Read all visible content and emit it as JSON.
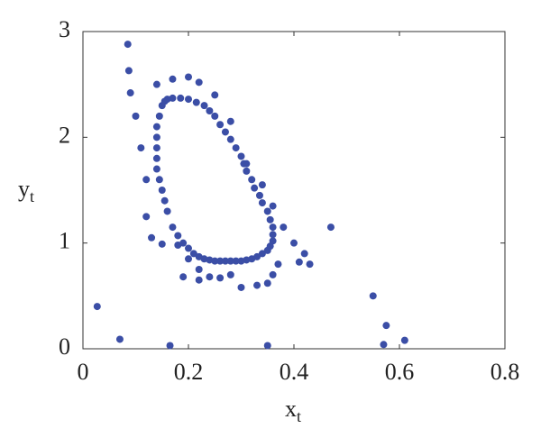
{
  "chart_data": {
    "type": "scatter",
    "x_label": {
      "base": "x",
      "sub": "t"
    },
    "y_label": {
      "base": "y",
      "sub": "t"
    },
    "xlim": [
      0,
      0.8
    ],
    "ylim": [
      0,
      3
    ],
    "xticks": [
      0,
      0.2,
      0.4,
      0.6,
      0.8
    ],
    "yticks": [
      0,
      1,
      2,
      3
    ],
    "grid": false,
    "series": [
      {
        "color": "#3b4ea6",
        "x": [
          0.027,
          0.07,
          0.085,
          0.087,
          0.165,
          0.35,
          0.55,
          0.575,
          0.57,
          0.61,
          0.47,
          0.09,
          0.1,
          0.11,
          0.12,
          0.14,
          0.17,
          0.2,
          0.22,
          0.25,
          0.28,
          0.31,
          0.34,
          0.36,
          0.38,
          0.4,
          0.42,
          0.43,
          0.41,
          0.12,
          0.13,
          0.15,
          0.18,
          0.2,
          0.22,
          0.24,
          0.26,
          0.28,
          0.3,
          0.33,
          0.35,
          0.36,
          0.37,
          0.19,
          0.22,
          0.15,
          0.145,
          0.14,
          0.14,
          0.14,
          0.14,
          0.14,
          0.145,
          0.15,
          0.155,
          0.16,
          0.17,
          0.18,
          0.19,
          0.2,
          0.21,
          0.22,
          0.23,
          0.24,
          0.25,
          0.26,
          0.27,
          0.28,
          0.29,
          0.3,
          0.31,
          0.32,
          0.33,
          0.34,
          0.35,
          0.355,
          0.36,
          0.36,
          0.36,
          0.355,
          0.35,
          0.34,
          0.335,
          0.325,
          0.32,
          0.31,
          0.305,
          0.3,
          0.29,
          0.28,
          0.27,
          0.26,
          0.25,
          0.24,
          0.23,
          0.215,
          0.2,
          0.185,
          0.17,
          0.16,
          0.155
        ],
        "y": [
          0.4,
          0.09,
          2.88,
          2.63,
          0.03,
          0.03,
          0.5,
          0.22,
          0.04,
          0.08,
          1.15,
          2.42,
          2.2,
          1.9,
          1.6,
          2.5,
          2.55,
          2.57,
          2.52,
          2.4,
          2.15,
          1.75,
          1.55,
          1.35,
          1.15,
          1.0,
          0.9,
          0.8,
          0.82,
          1.25,
          1.05,
          0.99,
          0.98,
          0.85,
          0.75,
          0.68,
          0.67,
          0.7,
          0.58,
          0.6,
          0.62,
          0.7,
          0.8,
          0.68,
          0.65,
          2.3,
          2.2,
          2.1,
          2.0,
          1.9,
          1.8,
          1.7,
          1.6,
          1.5,
          1.4,
          1.3,
          1.15,
          1.07,
          1.0,
          0.95,
          0.9,
          0.87,
          0.85,
          0.84,
          0.83,
          0.83,
          0.83,
          0.83,
          0.83,
          0.83,
          0.84,
          0.85,
          0.87,
          0.9,
          0.93,
          0.97,
          1.02,
          1.08,
          1.15,
          1.22,
          1.3,
          1.38,
          1.45,
          1.52,
          1.6,
          1.68,
          1.75,
          1.82,
          1.9,
          1.98,
          2.05,
          2.12,
          2.2,
          2.25,
          2.3,
          2.33,
          2.36,
          2.37,
          2.37,
          2.36,
          2.34
        ]
      }
    ]
  }
}
